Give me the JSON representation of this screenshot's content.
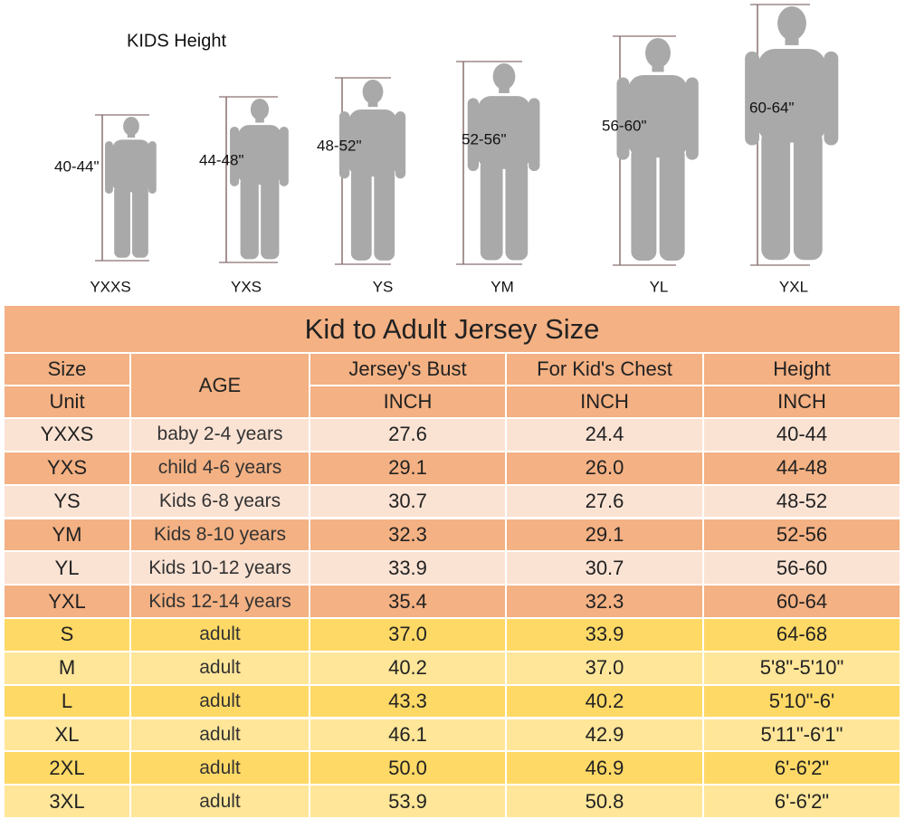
{
  "figure": {
    "title": "KIDS Height",
    "people": [
      {
        "height": "40-44\"",
        "size": "YXXS"
      },
      {
        "height": "44-48\"",
        "size": "YXS"
      },
      {
        "height": "48-52\"",
        "size": "YS"
      },
      {
        "height": "52-56\"",
        "size": "YM"
      },
      {
        "height": "56-60\"",
        "size": "YL"
      },
      {
        "height": "60-64\"",
        "size": "YXL"
      }
    ]
  },
  "table": {
    "title": "Kid to Adult Jersey Size",
    "header": {
      "size": "Size",
      "unit": "Unit",
      "age": "AGE",
      "columns": [
        {
          "name": "Jersey's Bust",
          "unit": "INCH"
        },
        {
          "name": "For Kid's Chest",
          "unit": "INCH"
        },
        {
          "name": "Height",
          "unit": "INCH"
        }
      ]
    },
    "rows": [
      [
        "YXXS",
        "baby 2-4 years",
        "27.6",
        "24.4",
        "40-44"
      ],
      [
        "YXS",
        "child 4-6 years",
        "29.1",
        "26.0",
        "44-48"
      ],
      [
        "YS",
        "Kids 6-8 years",
        "30.7",
        "27.6",
        "48-52"
      ],
      [
        "YM",
        "Kids 8-10 years",
        "32.3",
        "29.1",
        "52-56"
      ],
      [
        "YL",
        "Kids 10-12 years",
        "33.9",
        "30.7",
        "56-60"
      ],
      [
        "YXL",
        "Kids 12-14 years",
        "35.4",
        "32.3",
        "60-64"
      ],
      [
        "S",
        "adult",
        "37.0",
        "33.9",
        "64-68"
      ],
      [
        "M",
        "adult",
        "40.2",
        "37.0",
        "5'8\"-5'10\""
      ],
      [
        "L",
        "adult",
        "43.3",
        "40.2",
        "5'10\"-6'"
      ],
      [
        "XL",
        "adult",
        "46.1",
        "42.9",
        "5'11\"-6'1\""
      ],
      [
        "2XL",
        "adult",
        "50.0",
        "46.9",
        "6'-6'2\""
      ],
      [
        "3XL",
        "adult",
        "53.9",
        "50.8",
        "6'-6'2\""
      ]
    ]
  }
}
